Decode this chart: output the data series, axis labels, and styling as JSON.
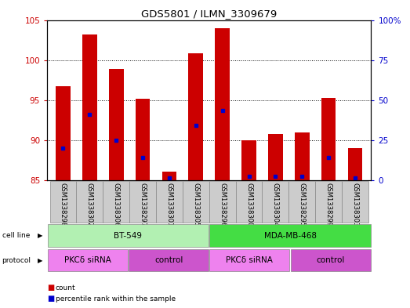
{
  "title": "GDS5801 / ILMN_3309679",
  "samples": [
    "GSM1338298",
    "GSM1338302",
    "GSM1338306",
    "GSM1338297",
    "GSM1338301",
    "GSM1338305",
    "GSM1338296",
    "GSM1338300",
    "GSM1338304",
    "GSM1338295",
    "GSM1338299",
    "GSM1338303"
  ],
  "red_values": [
    96.7,
    103.2,
    98.9,
    95.2,
    86.1,
    100.8,
    104.0,
    90.0,
    90.8,
    91.0,
    95.3,
    89.0
  ],
  "blue_values": [
    89.0,
    93.2,
    90.0,
    87.8,
    85.3,
    91.8,
    93.7,
    85.5,
    85.5,
    85.5,
    87.8,
    85.3
  ],
  "ylim_left": [
    85,
    105
  ],
  "ylim_right": [
    0,
    100
  ],
  "yticks_left": [
    85,
    90,
    95,
    100,
    105
  ],
  "yticks_right": [
    0,
    25,
    50,
    75,
    100
  ],
  "ytick_labels_right": [
    "0",
    "25",
    "50",
    "75",
    "100%"
  ],
  "cell_line_groups": [
    {
      "label": "BT-549",
      "start": 0,
      "end": 6,
      "color": "#b2f0b2"
    },
    {
      "label": "MDA-MB-468",
      "start": 6,
      "end": 12,
      "color": "#44dd44"
    }
  ],
  "protocol_groups": [
    {
      "label": "PKCδ siRNA",
      "start": 0,
      "end": 3,
      "color": "#ee82ee"
    },
    {
      "label": "control",
      "start": 3,
      "end": 6,
      "color": "#cc55cc"
    },
    {
      "label": "PKCδ siRNA",
      "start": 6,
      "end": 9,
      "color": "#ee82ee"
    },
    {
      "label": "control",
      "start": 9,
      "end": 12,
      "color": "#cc55cc"
    }
  ],
  "bar_width": 0.55,
  "red_color": "#cc0000",
  "blue_color": "#0000cc",
  "label_count": "count",
  "label_percentile": "percentile rank within the sample",
  "left_axis_color": "#cc0000",
  "right_axis_color": "#0000cc",
  "sample_box_color": "#cccccc"
}
